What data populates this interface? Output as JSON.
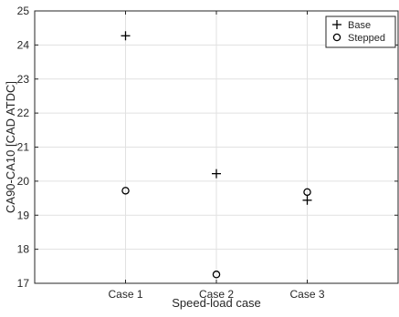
{
  "chart_data": {
    "type": "scatter",
    "categories": [
      "Case 1",
      "Case 2",
      "Case 3"
    ],
    "series": [
      {
        "name": "Base",
        "marker": "plus",
        "values": [
          24.27,
          20.22,
          19.44
        ]
      },
      {
        "name": "Stepped",
        "marker": "circle",
        "values": [
          19.72,
          17.26,
          19.68
        ]
      }
    ],
    "xlabel": "Speed-load case",
    "ylabel": "CA90-CA10 [CAD ATDC]",
    "ylim": [
      17,
      25
    ],
    "yticks": [
      17,
      18,
      19,
      20,
      21,
      22,
      23,
      24,
      25
    ],
    "grid": true,
    "legend_position": "top-right",
    "colors": {
      "marker": "#000000",
      "grid": "#e1e1e1",
      "axis": "#262626"
    }
  }
}
